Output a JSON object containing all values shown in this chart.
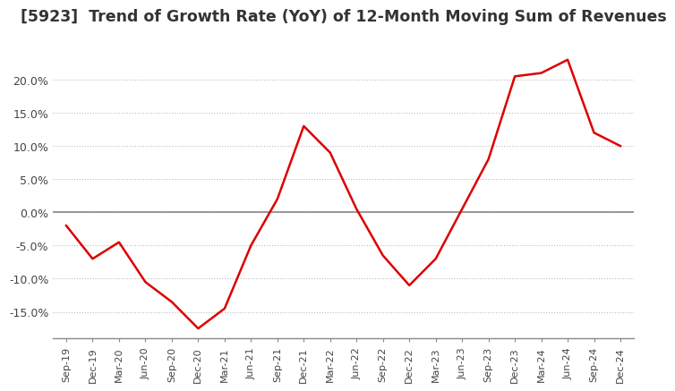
{
  "title": "[5923]  Trend of Growth Rate (YoY) of 12-Month Moving Sum of Revenues",
  "line_color": "#dd0000",
  "background_color": "#ffffff",
  "grid_color": "#bbbbbb",
  "zero_line_color": "#888888",
  "x_labels": [
    "Sep-19",
    "Dec-19",
    "Mar-20",
    "Jun-20",
    "Sep-20",
    "Dec-20",
    "Mar-21",
    "Jun-21",
    "Sep-21",
    "Dec-21",
    "Mar-22",
    "Jun-22",
    "Sep-22",
    "Dec-22",
    "Mar-23",
    "Jun-23",
    "Sep-23",
    "Dec-23",
    "Mar-24",
    "Jun-24",
    "Sep-24",
    "Dec-24"
  ],
  "y_values": [
    -2.0,
    -7.0,
    -4.5,
    -10.5,
    -13.5,
    -17.5,
    -14.5,
    -5.0,
    2.0,
    13.0,
    9.0,
    0.5,
    -6.5,
    -11.0,
    -7.0,
    0.5,
    8.0,
    20.5,
    21.0,
    23.0,
    12.0,
    10.0
  ],
  "ylim": [
    -19.0,
    27.0
  ],
  "yticks": [
    -15.0,
    -10.0,
    -5.0,
    0.0,
    5.0,
    10.0,
    15.0,
    20.0
  ],
  "title_fontsize": 12.5
}
